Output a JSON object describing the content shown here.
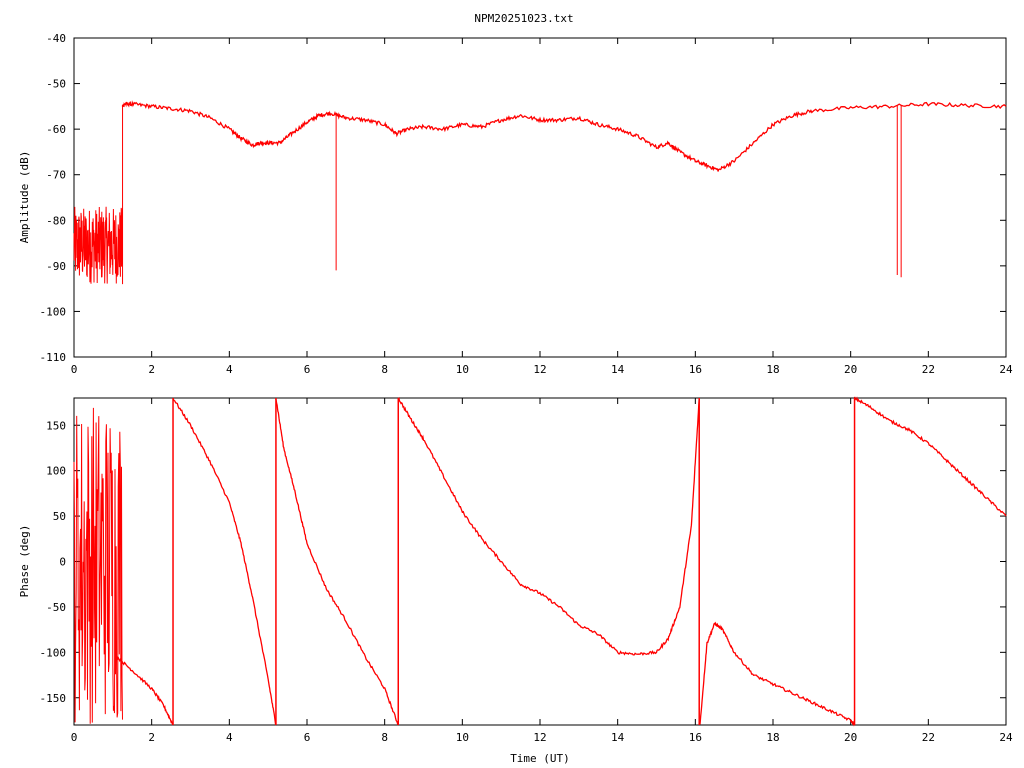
{
  "title": "NPM20251023.txt",
  "chart_data": [
    {
      "type": "line",
      "ylabel": "Amplitude (dB)",
      "xlabel": "",
      "xlim": [
        0,
        24
      ],
      "ylim": [
        -110,
        -40
      ],
      "xticks": [
        0,
        2,
        4,
        6,
        8,
        10,
        12,
        14,
        16,
        18,
        20,
        22,
        24
      ],
      "yticks": [
        -40,
        -50,
        -60,
        -70,
        -80,
        -90,
        -100,
        -110
      ],
      "color": "#ff0000",
      "series": [
        {
          "x": [
            1.25,
            1.3,
            1.5,
            2.0,
            2.5,
            3.0,
            3.5,
            4.0,
            4.3,
            4.6,
            4.8,
            5.0,
            5.3,
            5.6,
            6.0,
            6.3,
            6.6,
            7.0,
            7.5,
            8.0,
            8.3,
            8.6,
            9.0,
            9.5,
            10.0,
            10.5,
            11.0,
            11.5,
            12.0,
            12.5,
            13.0,
            13.5,
            14.0,
            14.5,
            15.0,
            15.3,
            15.6,
            16.0,
            16.3,
            16.6,
            17.0,
            17.5,
            18.0,
            18.5,
            19.0,
            20.0,
            21.0,
            22.0,
            23.0,
            24.0
          ],
          "y": [
            -55,
            -54.5,
            -54.5,
            -55,
            -55.5,
            -56,
            -57.5,
            -60,
            -62,
            -63.5,
            -63,
            -63,
            -63,
            -61,
            -58.5,
            -57,
            -56.5,
            -57.5,
            -58,
            -59,
            -61,
            -60,
            -59.5,
            -60,
            -59,
            -59.5,
            -58,
            -57,
            -58,
            -58,
            -57.5,
            -59,
            -60,
            -61.5,
            -64,
            -63,
            -65,
            -67,
            -68,
            -69,
            -67,
            -63,
            -59,
            -57,
            -56,
            -55.3,
            -55,
            -54.5,
            -54.8,
            -55
          ]
        }
      ],
      "noise_band": {
        "x": [
          0,
          1.25
        ],
        "y": [
          -94,
          -77
        ]
      },
      "spikes": [
        {
          "x": 6.75,
          "y": -91
        },
        {
          "x": 21.2,
          "y": -92
        },
        {
          "x": 21.3,
          "y": -92.5
        }
      ]
    },
    {
      "type": "line",
      "ylabel": "Phase (deg)",
      "xlabel": "Time (UT)",
      "xlim": [
        0,
        24
      ],
      "ylim": [
        -180,
        180
      ],
      "xticks": [
        0,
        2,
        4,
        6,
        8,
        10,
        12,
        14,
        16,
        18,
        20,
        22,
        24
      ],
      "yticks": [
        150,
        100,
        50,
        0,
        -50,
        -100,
        -150
      ],
      "color": "#ff0000",
      "series": [
        {
          "x": [
            1.1,
            1.5,
            2.0,
            2.3,
            2.55
          ],
          "y": [
            -105,
            -120,
            -140,
            -158,
            -180
          ]
        },
        {
          "x": [
            2.55,
            3.0,
            3.5,
            4.0,
            4.3,
            4.6,
            5.0,
            5.2
          ],
          "y": [
            180,
            150,
            110,
            65,
            20,
            -40,
            -130,
            -180
          ]
        },
        {
          "x": [
            5.2,
            5.4,
            5.7,
            6.0,
            6.5,
            7.0,
            7.5,
            8.0,
            8.35
          ],
          "y": [
            180,
            125,
            75,
            20,
            -30,
            -65,
            -105,
            -140,
            -180
          ]
        },
        {
          "x": [
            8.35,
            8.7,
            9.0,
            9.5,
            10.0,
            10.5,
            11.0,
            11.5,
            12.0,
            12.5,
            13.0,
            13.5,
            14.0,
            14.5,
            15.0,
            15.3,
            15.6,
            15.9,
            16.1
          ],
          "y": [
            180,
            155,
            135,
            95,
            55,
            25,
            0,
            -25,
            -35,
            -50,
            -70,
            -80,
            -100,
            -102,
            -100,
            -85,
            -50,
            40,
            180
          ]
        },
        {
          "x": [
            16.12,
            16.3,
            16.5,
            16.7,
            17.0,
            17.5,
            18.0,
            18.5,
            19.0,
            19.5,
            20.0,
            20.1
          ],
          "y": [
            -180,
            -90,
            -68,
            -75,
            -100,
            -125,
            -135,
            -145,
            -155,
            -165,
            -175,
            -180
          ]
        },
        {
          "x": [
            20.1,
            20.5,
            21.0,
            21.5,
            22.0,
            22.5,
            23.0,
            23.5,
            24.0
          ],
          "y": [
            180,
            170,
            155,
            145,
            130,
            110,
            90,
            70,
            50
          ]
        }
      ],
      "wraps": [
        2.55,
        5.2,
        8.35,
        16.1,
        20.1
      ],
      "noise_band": {
        "x": [
          0,
          1.25
        ],
        "y": [
          -180,
          180
        ]
      }
    }
  ]
}
